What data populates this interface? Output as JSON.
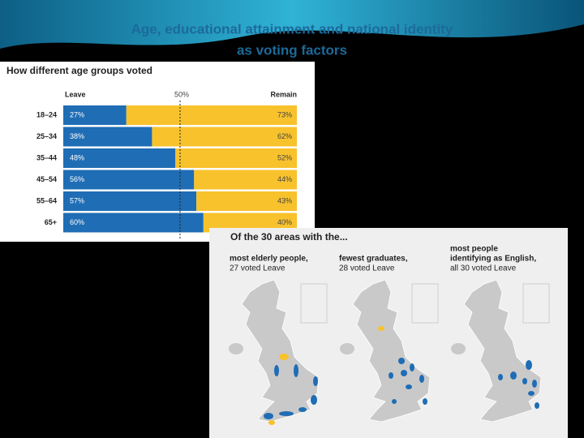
{
  "slide": {
    "title_lines": [
      "Age, educational attainment and national identity",
      "as voting factors"
    ]
  },
  "chart_data": {
    "type": "bar",
    "orientation": "horizontal",
    "stacked": true,
    "title": "How different age groups voted",
    "categories": [
      "18–24",
      "25–34",
      "35–44",
      "45–54",
      "55–64",
      "65+"
    ],
    "series": [
      {
        "name": "Leave",
        "color": "#1f6db5",
        "values": [
          27,
          38,
          48,
          56,
          57,
          60
        ],
        "value_labels": [
          "27%",
          "38%",
          "48%",
          "56%",
          "57%",
          "60%"
        ]
      },
      {
        "name": "Remain",
        "color": "#f8c22c",
        "values": [
          73,
          62,
          52,
          44,
          43,
          40
        ],
        "value_labels": [
          "73%",
          "62%",
          "52%",
          "44%",
          "43%",
          "40%"
        ]
      }
    ],
    "xlim": [
      0,
      100
    ],
    "reference_line": {
      "value": 50,
      "label": "50%"
    }
  },
  "maps": {
    "title": "Of the 30 areas with the...",
    "panels": [
      {
        "label_lines": [
          "most elderly people,",
          "27 voted Leave"
        ]
      },
      {
        "label_lines": [
          "fewest graduates,",
          "28 voted Leave"
        ]
      },
      {
        "label_lines": [
          "most people",
          "identifying as English,",
          "all 30 voted Leave"
        ]
      }
    ]
  }
}
